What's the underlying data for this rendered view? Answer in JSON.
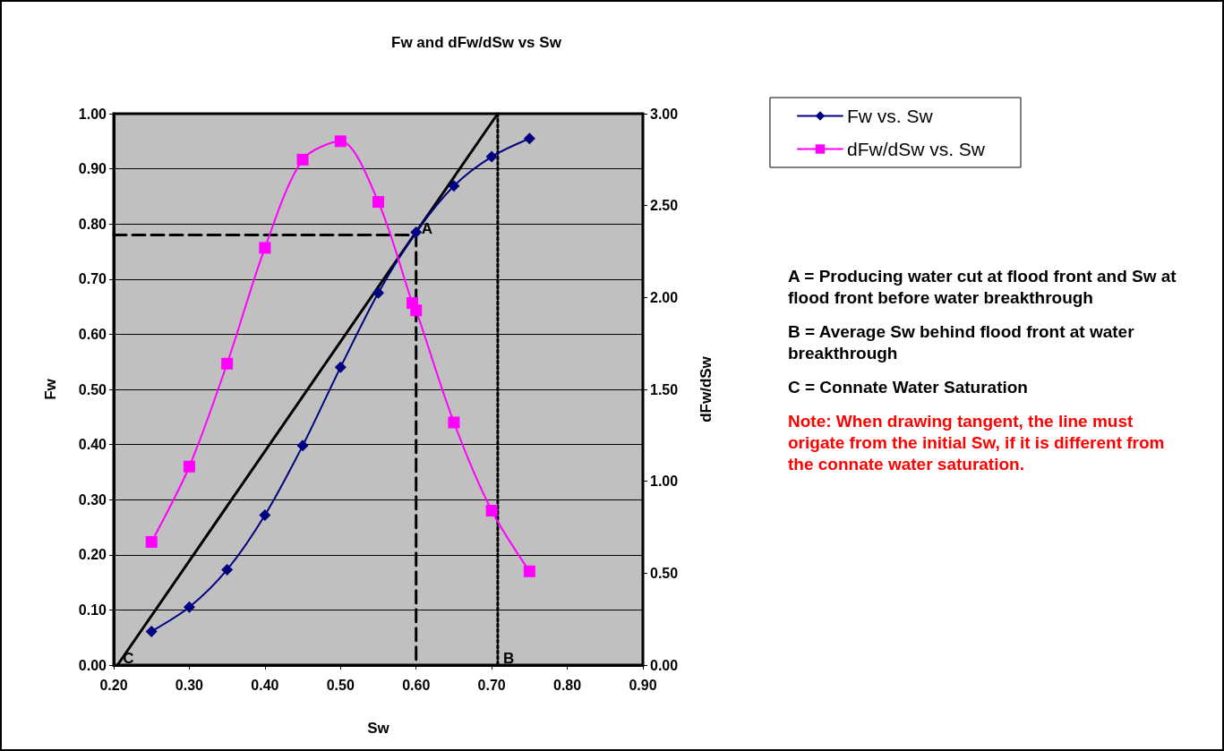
{
  "chart_data": {
    "type": "line",
    "title": "Fw and dFw/dSw vs Sw",
    "xlabel": "Sw",
    "ylabel": "Fw",
    "y2label": "dFw/dSw",
    "x": [
      0.25,
      0.3,
      0.35,
      0.4,
      0.45,
      0.5,
      0.55,
      0.6,
      0.65,
      0.7,
      0.75
    ],
    "series": [
      {
        "name": "Fw vs. Sw",
        "color": "#000080",
        "marker": "diamond",
        "values": [
          0.061,
          0.105,
          0.173,
          0.272,
          0.398,
          0.54,
          0.675,
          0.785,
          0.869,
          0.922,
          0.955
        ]
      },
      {
        "name": "dFw/dSw vs. Sw",
        "color": "#ff00ff",
        "marker": "square",
        "axis": "y2",
        "x": [
          0.25,
          0.3,
          0.35,
          0.4,
          0.45,
          0.5,
          0.55,
          0.595,
          0.6,
          0.65,
          0.7,
          0.75
        ],
        "values": [
          0.67,
          1.08,
          1.64,
          2.27,
          2.75,
          2.85,
          2.52,
          1.97,
          1.93,
          1.32,
          0.84,
          0.51
        ]
      },
      {
        "color": "#000000",
        "marker": "none",
        "x": [
          0.205,
          0.708
        ],
        "values": [
          0,
          1
        ]
      },
      {
        "color": "#000000",
        "marker": "none",
        "line_style": "dashed",
        "x": [
          0.2,
          0.6,
          0.6
        ],
        "values": [
          0.78,
          0.78,
          0
        ]
      },
      {
        "color": "#000000",
        "marker": "none",
        "line_style": "dotted",
        "x": [
          0.708,
          0.708
        ],
        "values": [
          1,
          0
        ]
      }
    ],
    "xlim": [
      0.2,
      0.9
    ],
    "xticks": [
      {
        "value": 0.2,
        "label": "0.20"
      },
      {
        "value": 0.3,
        "label": "0.30"
      },
      {
        "value": 0.4,
        "label": "0.40"
      },
      {
        "value": 0.5,
        "label": "0.50"
      },
      {
        "value": 0.6,
        "label": "0.60"
      },
      {
        "value": 0.7,
        "label": "0.70"
      },
      {
        "value": 0.8,
        "label": "0.80"
      },
      {
        "value": 0.9,
        "label": "0.90"
      }
    ],
    "ylim": [
      0,
      1
    ],
    "yticks": [
      {
        "value": 0,
        "label": "0.00"
      },
      {
        "value": 0.1,
        "label": "0.10"
      },
      {
        "value": 0.2,
        "label": "0.20"
      },
      {
        "value": 0.3,
        "label": "0.30"
      },
      {
        "value": 0.4,
        "label": "0.40"
      },
      {
        "value": 0.5,
        "label": "0.50"
      },
      {
        "value": 0.6,
        "label": "0.60"
      },
      {
        "value": 0.7,
        "label": "0.70"
      },
      {
        "value": 0.8,
        "label": "0.80"
      },
      {
        "value": 0.9,
        "label": "0.90"
      },
      {
        "value": 1,
        "label": "1.00"
      }
    ],
    "y2lim": [
      0,
      3
    ],
    "y2ticks": [
      {
        "value": 0,
        "label": "0.00"
      },
      {
        "value": 0.5,
        "label": "0.50"
      },
      {
        "value": 1,
        "label": "1.00"
      },
      {
        "value": 1.5,
        "label": "1.50"
      },
      {
        "value": 2,
        "label": "2.00"
      },
      {
        "value": 2.5,
        "label": "2.50"
      },
      {
        "value": 3,
        "label": "3.00"
      }
    ],
    "grid": "y",
    "legend": "top right",
    "annotations": [
      {
        "text": "A",
        "x": 0.6,
        "y": 0.78
      },
      {
        "text": "B",
        "x": 0.708,
        "y": 0
      },
      {
        "text": "C",
        "x": 0.205,
        "y": 0
      },
      "A = Producing water cut at flood front and Sw at flood front before water breakthrough",
      "B = Average Sw behind flood front at water breakthrough",
      "C = Connate Water Saturation",
      "Note:  When drawing tangent, the line must origate from the initial Sw, if it is different from the connate water saturation."
    ]
  }
}
